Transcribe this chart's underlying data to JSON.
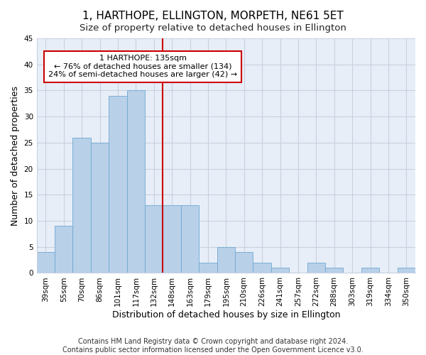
{
  "title": "1, HARTHOPE, ELLINGTON, MORPETH, NE61 5ET",
  "subtitle": "Size of property relative to detached houses in Ellington",
  "xlabel": "Distribution of detached houses by size in Ellington",
  "ylabel": "Number of detached properties",
  "categories": [
    "39sqm",
    "55sqm",
    "70sqm",
    "86sqm",
    "101sqm",
    "117sqm",
    "132sqm",
    "148sqm",
    "163sqm",
    "179sqm",
    "195sqm",
    "210sqm",
    "226sqm",
    "241sqm",
    "257sqm",
    "272sqm",
    "288sqm",
    "303sqm",
    "319sqm",
    "334sqm",
    "350sqm"
  ],
  "values": [
    4,
    9,
    26,
    25,
    34,
    35,
    13,
    13,
    13,
    2,
    5,
    4,
    2,
    1,
    0,
    2,
    1,
    0,
    1,
    0,
    1
  ],
  "bar_color": "#b8d0e8",
  "bar_edge_color": "#6fa8d0",
  "property_line_x": 6.5,
  "annotation_text1": "1 HARTHOPE: 135sqm",
  "annotation_text2": "← 76% of detached houses are smaller (134)",
  "annotation_text3": "24% of semi-detached houses are larger (42) →",
  "annotation_box_color": "#ffffff",
  "annotation_box_edge_color": "#cc0000",
  "line_color": "#cc0000",
  "ylim": [
    0,
    45
  ],
  "yticks": [
    0,
    5,
    10,
    15,
    20,
    25,
    30,
    35,
    40,
    45
  ],
  "background_color": "#e8eef8",
  "grid_color": "#c8d0e0",
  "footer_line1": "Contains HM Land Registry data © Crown copyright and database right 2024.",
  "footer_line2": "Contains public sector information licensed under the Open Government Licence v3.0.",
  "title_fontsize": 11,
  "xlabel_fontsize": 9,
  "ylabel_fontsize": 9,
  "tick_fontsize": 7.5,
  "annotation_fontsize": 8,
  "footer_fontsize": 7
}
